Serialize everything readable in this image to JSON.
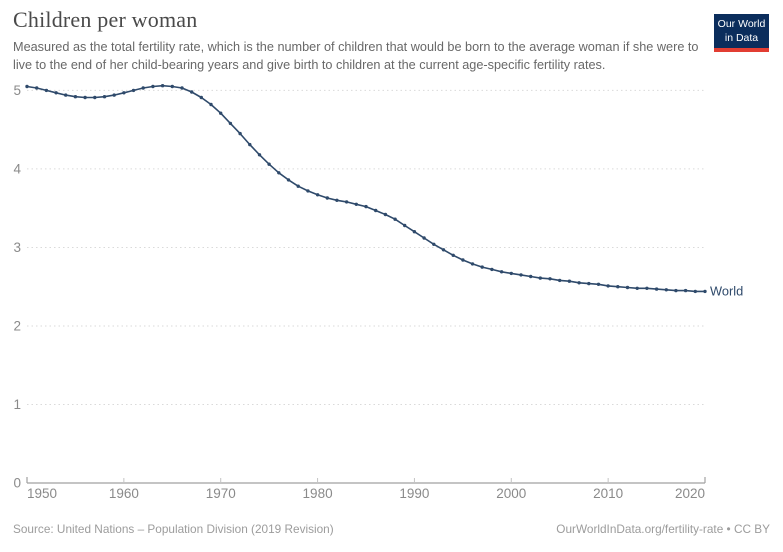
{
  "header": {
    "title": "Children per woman",
    "subtitle": "Measured as the total fertility rate, which is the number of children that would be born to the average woman if she were to live to the end of her child-bearing years and give birth to children at the current age-specific fertility rates.",
    "logo": {
      "line1": "Our World",
      "line2": "in Data"
    }
  },
  "footer": {
    "source": "Source: United Nations – Population Division (2019 Revision)",
    "attribution": "OurWorldInData.org/fertility-rate • CC BY"
  },
  "colors": {
    "line": "#2f4a6b",
    "grid": "#dadada",
    "axis": "#a1a1a1",
    "tick_label": "#8a8a8a",
    "logo_bg": "#0b2d5c",
    "logo_bar": "#e23d32",
    "title_text": "#4a4a4a",
    "subtitle_text": "#686868",
    "footer_text": "#9c9c9c"
  },
  "chart_data": {
    "type": "line",
    "title": "Children per woman",
    "xlabel": "",
    "ylabel": "",
    "xlim": [
      1950,
      2020
    ],
    "ylim": [
      0,
      5
    ],
    "grid": "horizontal-dashed",
    "legend_position": "end-of-line-label",
    "x_ticks": [
      1950,
      1960,
      1970,
      1980,
      1990,
      2000,
      2010,
      2020
    ],
    "y_ticks": [
      0,
      1,
      2,
      3,
      4,
      5
    ],
    "series": [
      {
        "name": "World",
        "end_label": "World",
        "x": [
          1950,
          1951,
          1952,
          1953,
          1954,
          1955,
          1956,
          1957,
          1958,
          1959,
          1960,
          1961,
          1962,
          1963,
          1964,
          1965,
          1966,
          1967,
          1968,
          1969,
          1970,
          1971,
          1972,
          1973,
          1974,
          1975,
          1976,
          1977,
          1978,
          1979,
          1980,
          1981,
          1982,
          1983,
          1984,
          1985,
          1986,
          1987,
          1988,
          1989,
          1990,
          1991,
          1992,
          1993,
          1994,
          1995,
          1996,
          1997,
          1998,
          1999,
          2000,
          2001,
          2002,
          2003,
          2004,
          2005,
          2006,
          2007,
          2008,
          2009,
          2010,
          2011,
          2012,
          2013,
          2014,
          2015,
          2016,
          2017,
          2018,
          2019,
          2020
        ],
        "values": [
          5.05,
          5.03,
          5.0,
          4.97,
          4.94,
          4.92,
          4.91,
          4.91,
          4.92,
          4.94,
          4.97,
          5.0,
          5.03,
          5.05,
          5.06,
          5.05,
          5.03,
          4.98,
          4.91,
          4.82,
          4.71,
          4.58,
          4.45,
          4.31,
          4.18,
          4.06,
          3.95,
          3.86,
          3.78,
          3.72,
          3.67,
          3.63,
          3.6,
          3.58,
          3.55,
          3.52,
          3.47,
          3.42,
          3.36,
          3.28,
          3.2,
          3.12,
          3.04,
          2.97,
          2.9,
          2.84,
          2.79,
          2.75,
          2.72,
          2.69,
          2.67,
          2.65,
          2.63,
          2.61,
          2.6,
          2.58,
          2.57,
          2.55,
          2.54,
          2.53,
          2.51,
          2.5,
          2.49,
          2.48,
          2.48,
          2.47,
          2.46,
          2.45,
          2.45,
          2.44,
          2.44
        ]
      }
    ]
  }
}
